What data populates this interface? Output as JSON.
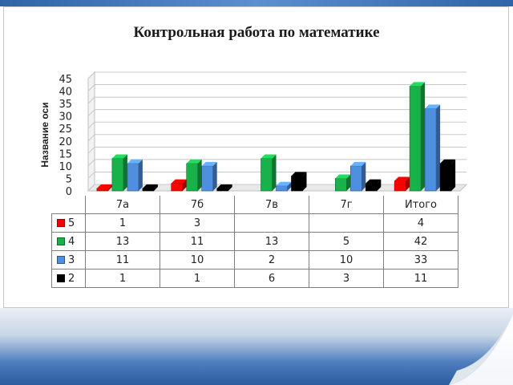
{
  "chart_data": {
    "type": "bar",
    "title": "Контрольная работа  по математике",
    "ylabel": "Название оси",
    "xlabel": "",
    "ylim": [
      0,
      45
    ],
    "yticks": [
      0,
      5,
      10,
      15,
      20,
      25,
      30,
      35,
      40,
      45
    ],
    "grid": true,
    "style": "3d-clustered-column",
    "legend_placement": "left-of-table",
    "categories": [
      "7а",
      "7б",
      "7в",
      "7г",
      "Итого"
    ],
    "series": [
      {
        "name": "5",
        "color": "#ff0000",
        "values": [
          1,
          3,
          0,
          0,
          4
        ],
        "labels": [
          "1",
          "3",
          "",
          "",
          "4"
        ]
      },
      {
        "name": "4",
        "color": "#19b24a",
        "values": [
          13,
          11,
          13,
          5,
          42
        ],
        "labels": [
          "13",
          "11",
          "13",
          "5",
          "42"
        ]
      },
      {
        "name": "3",
        "color": "#4f8fe0",
        "values": [
          11,
          10,
          2,
          10,
          33
        ],
        "labels": [
          "11",
          "10",
          "2",
          "10",
          "33"
        ]
      },
      {
        "name": "2",
        "color": "#000000",
        "values": [
          1,
          1,
          6,
          3,
          11
        ],
        "labels": [
          "1",
          "1",
          "6",
          "3",
          "11"
        ]
      }
    ]
  }
}
